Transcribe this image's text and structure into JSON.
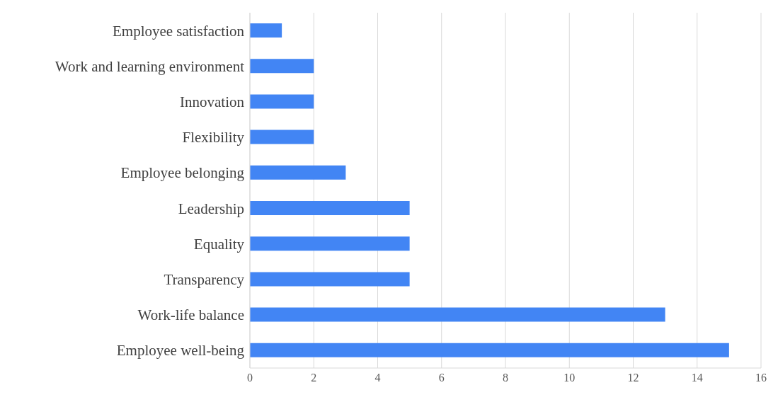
{
  "chart_data": {
    "type": "bar",
    "orientation": "horizontal",
    "categories": [
      "Employee satisfaction",
      "Work and learning environment",
      "Innovation",
      "Flexibility",
      "Employee belonging",
      "Leadership",
      "Equality",
      "Transparency",
      "Work-life balance",
      "Employee well-being"
    ],
    "values": [
      1,
      2,
      2,
      2,
      3,
      5,
      5,
      5,
      13,
      15
    ],
    "color": "#4285f4",
    "xlim": [
      0,
      16
    ],
    "xticks": [
      0,
      2,
      4,
      6,
      8,
      10,
      12,
      14,
      16
    ],
    "grid": "x",
    "legend": false
  }
}
